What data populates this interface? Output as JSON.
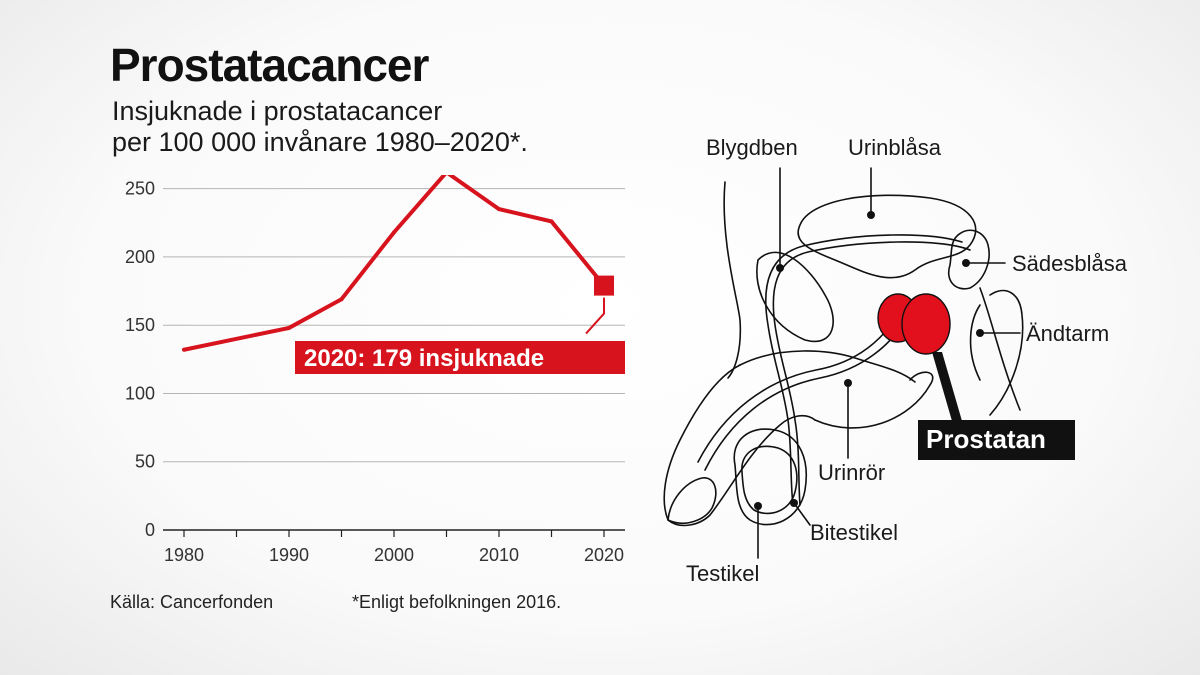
{
  "header": {
    "title": "Prostatacancer",
    "subtitle_line1": "Insjuknade i prostatacancer",
    "subtitle_line2": "per 100 000 invånare 1980–2020*."
  },
  "chart_data": {
    "type": "line",
    "title": "Prostatacancer",
    "subtitle": "Insjuknade i prostatacancer per 100 000 invånare 1980–2020*.",
    "x": [
      1980,
      1990,
      1995,
      2000,
      2005,
      2010,
      2015,
      2020
    ],
    "values": [
      132,
      148,
      169,
      218,
      262,
      235,
      226,
      179
    ],
    "xlim": [
      1978,
      2022
    ],
    "ylim": [
      0,
      260
    ],
    "x_ticks": [
      "1980",
      "1990",
      "2000",
      "2010",
      "2020"
    ],
    "y_ticks": [
      "0",
      "50",
      "100",
      "150",
      "200",
      "250"
    ],
    "grid": "horizontal",
    "annotation": "2020: 179 insjuknade",
    "color": "#d7141e"
  },
  "footer": {
    "source": "Källa: Cancerfonden",
    "footnote": "*Enligt befolkningen 2016."
  },
  "diagram": {
    "labels": {
      "blygdben": "Blygdben",
      "urinblasa": "Urinblåsa",
      "sadesblasa": "Sädesblåsa",
      "andtarm": "Ändtarm",
      "prostatan": "Prostatan",
      "urinror": "Urinrör",
      "bitestikel": "Bitestikel",
      "testikel": "Testikel"
    },
    "highlight_color": "#e2101c"
  }
}
